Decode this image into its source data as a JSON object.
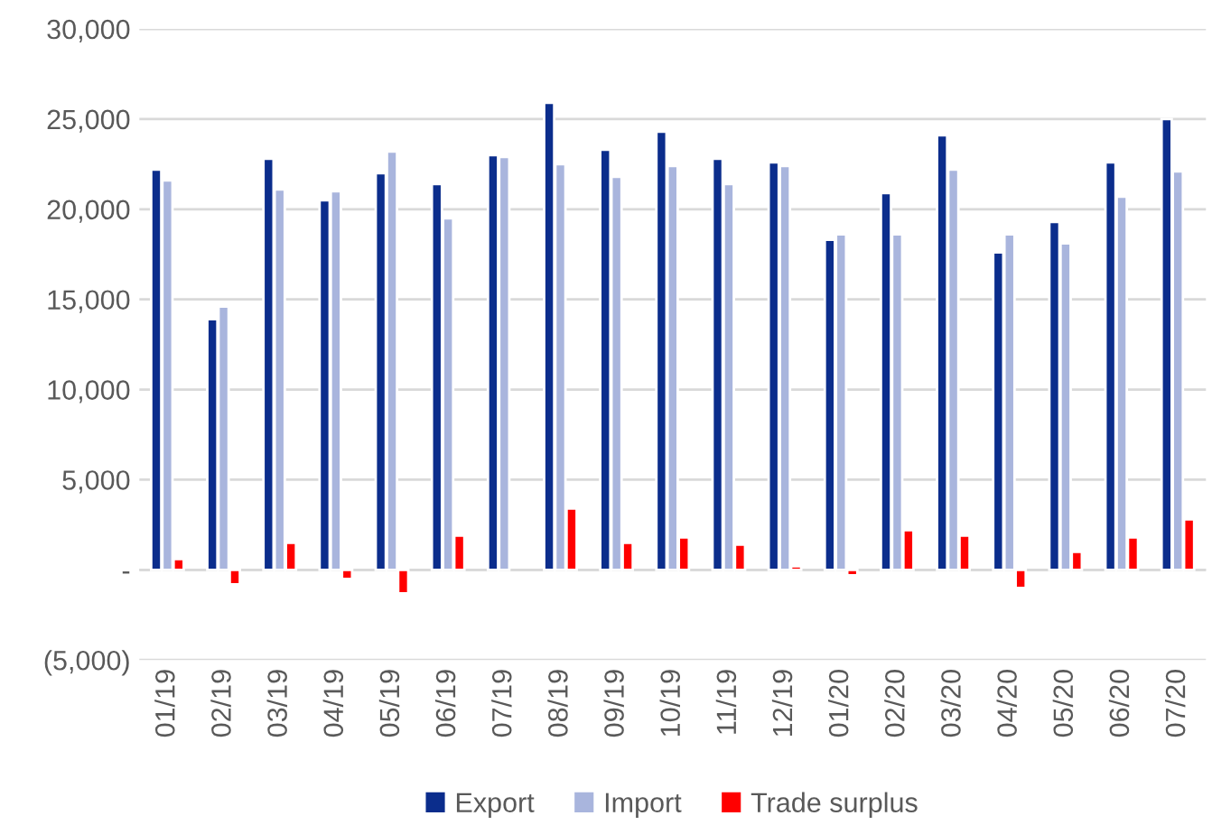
{
  "chart_data": {
    "type": "bar",
    "categories": [
      "01/19",
      "02/19",
      "03/19",
      "04/19",
      "05/19",
      "06/19",
      "07/19",
      "08/19",
      "09/19",
      "10/19",
      "11/19",
      "12/19",
      "01/20",
      "02/20",
      "03/20",
      "04/20",
      "05/20",
      "06/20",
      "07/20"
    ],
    "series": [
      {
        "name": "Export",
        "color": "#0b2d8c",
        "values": [
          22200,
          13900,
          22800,
          20500,
          22000,
          21400,
          23000,
          25900,
          23300,
          24300,
          22800,
          22600,
          18300,
          20900,
          24100,
          17600,
          19300,
          22600,
          25000
        ]
      },
      {
        "name": "Import",
        "color": "#a9b5dd",
        "values": [
          21600,
          14600,
          21100,
          21000,
          23200,
          19500,
          22900,
          22500,
          21800,
          22400,
          21400,
          22400,
          18600,
          18600,
          22200,
          18600,
          18100,
          20700,
          22100
        ]
      },
      {
        "name": "Trade surplus",
        "color": "#ff0000",
        "values": [
          600,
          -800,
          1500,
          -500,
          -1300,
          1900,
          null,
          3400,
          1500,
          1800,
          1400,
          200,
          -300,
          2200,
          1900,
          -1000,
          1000,
          1800,
          2800
        ]
      }
    ],
    "ylim": [
      -5000,
      30000
    ],
    "yticks": [
      {
        "value": -5000,
        "label": "(5,000)"
      },
      {
        "value": 0,
        "label": "-"
      },
      {
        "value": 5000,
        "label": "5,000"
      },
      {
        "value": 10000,
        "label": "10,000"
      },
      {
        "value": 15000,
        "label": "15,000"
      },
      {
        "value": 20000,
        "label": "20,000"
      },
      {
        "value": 25000,
        "label": "25,000"
      },
      {
        "value": 30000,
        "label": "30,000"
      }
    ],
    "grid": "y",
    "legend": "bottom"
  }
}
